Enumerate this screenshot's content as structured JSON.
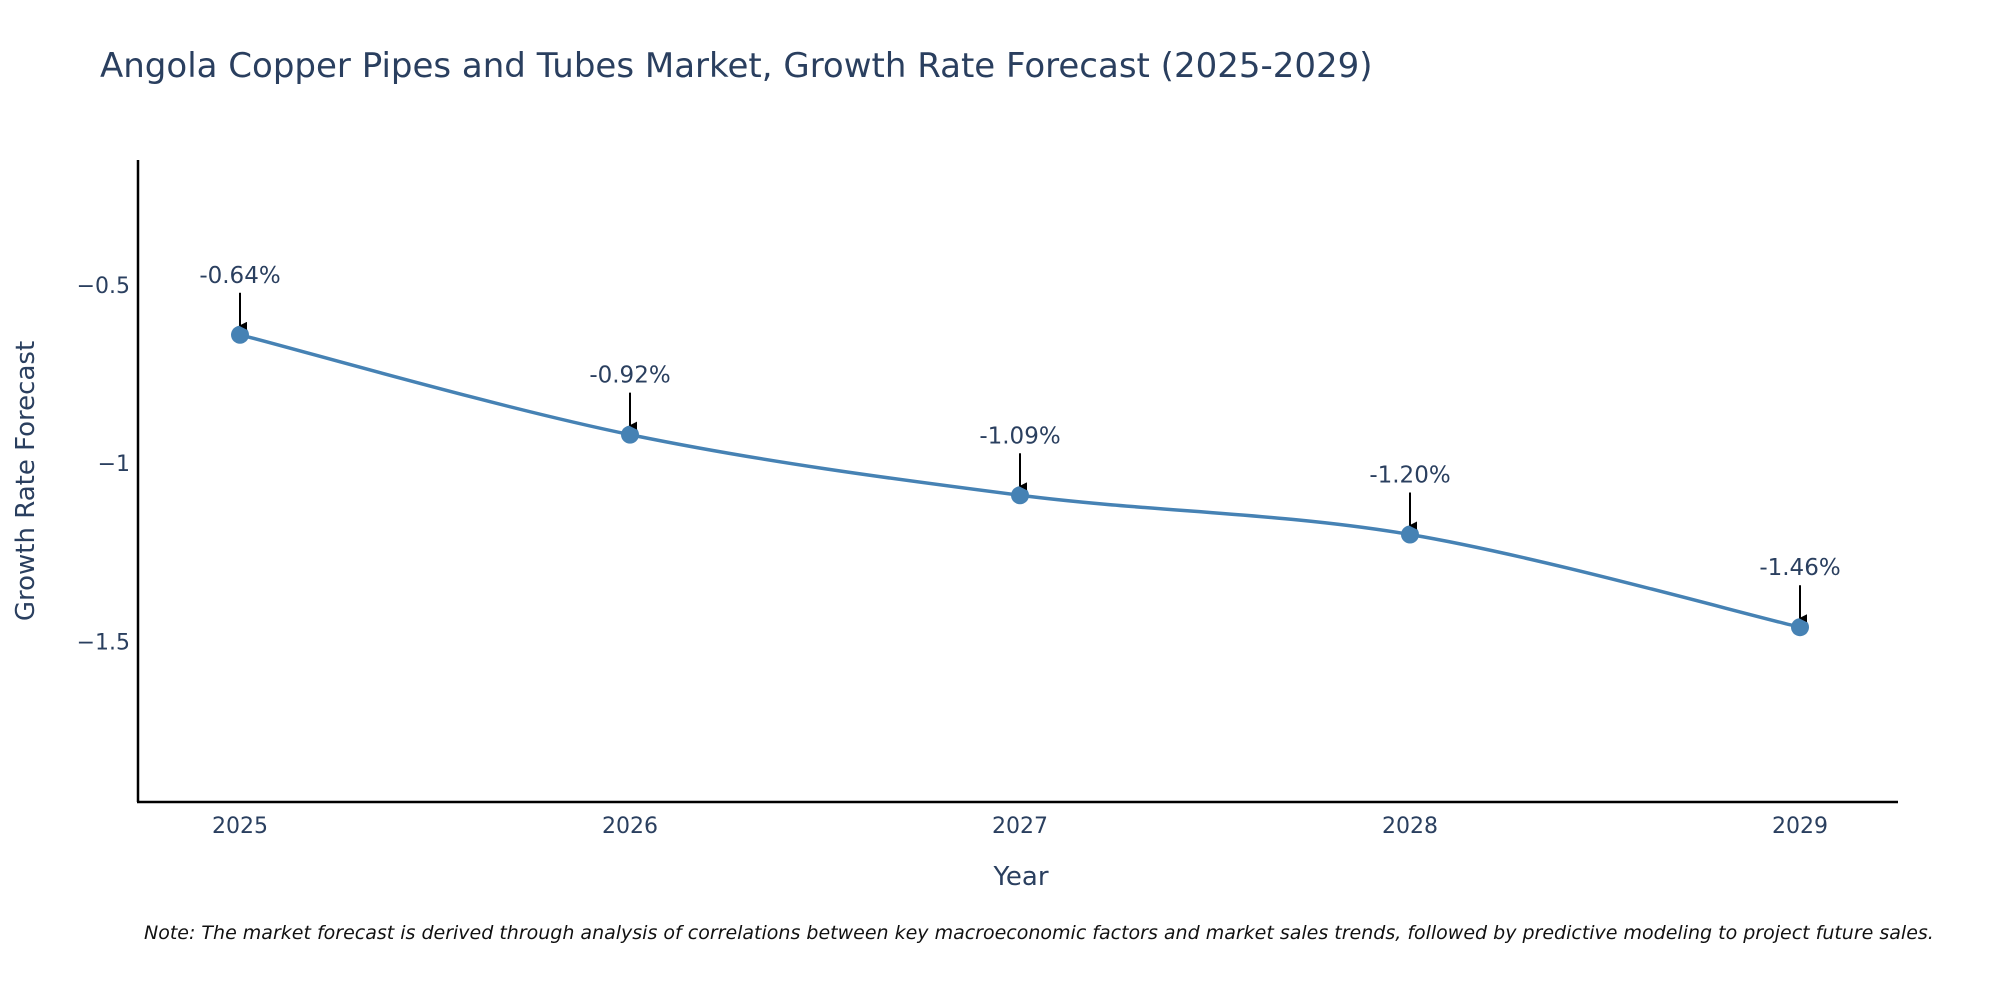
{
  "chart_data": {
    "type": "line",
    "title": "Angola Copper Pipes and Tubes Market, Growth Rate Forecast (2025-2029)",
    "xlabel": "Year",
    "ylabel": "Growth Rate Forecast",
    "categories": [
      "2025",
      "2026",
      "2027",
      "2028",
      "2029"
    ],
    "values": [
      -0.64,
      -0.92,
      -1.09,
      -1.2,
      -1.46
    ],
    "data_labels": [
      "-0.64%",
      "-0.92%",
      "-1.09%",
      "-1.20%",
      "-1.46%"
    ],
    "yticks": [
      -0.5,
      -1,
      -1.5
    ],
    "ytick_labels": [
      "−0.5",
      "−1",
      "−1.5"
    ],
    "ylim": [
      -1.95,
      -0.15
    ],
    "line_color": "#4682b4",
    "grid": false,
    "legend": "none",
    "note": "Note: The market forecast is derived through analysis of correlations between key macroeconomic factors and market sales trends, followed by predictive modeling to project future sales."
  }
}
